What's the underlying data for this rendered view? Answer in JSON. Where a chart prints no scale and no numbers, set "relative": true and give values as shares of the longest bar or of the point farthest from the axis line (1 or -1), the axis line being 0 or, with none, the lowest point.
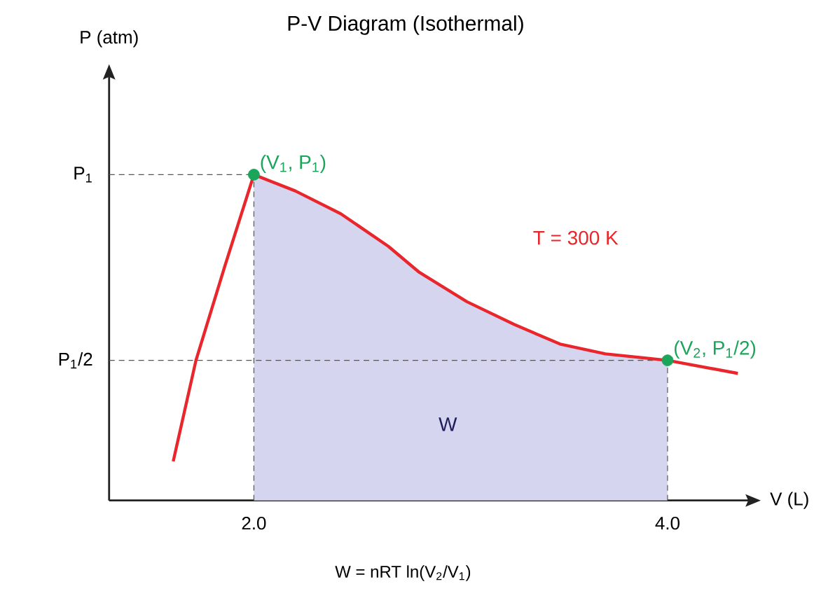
{
  "chart_data": {
    "type": "line",
    "title": "P-V Diagram (Isothermal)",
    "xlabel": "V (L)",
    "relative": true,
    "xlim": [
      1.3,
      4.39
    ],
    "xticks": [
      {
        "value": 2,
        "label": "2.0"
      },
      {
        "value": 4,
        "label": "4.0"
      }
    ],
    "series": [
      {
        "type": "area",
        "color": "#d5d5f0",
        "x": [
          2.0,
          2.2,
          2.42,
          2.65,
          2.8,
          3.03,
          3.26,
          3.48,
          3.7,
          4.0
        ],
        "values": [
          1.0,
          0.95,
          0.88,
          0.78,
          0.7,
          0.61,
          0.54,
          0.48,
          0.45,
          0.43
        ]
      },
      {
        "color": "#e8262b",
        "line_style": "solid",
        "marker": "none",
        "x": [
          1.61,
          1.72,
          1.86,
          2.0,
          2.2,
          2.42,
          2.65,
          2.8,
          3.03,
          3.26,
          3.48,
          3.7,
          4.0,
          4.34
        ],
        "values": [
          0.12,
          0.43,
          0.72,
          1.0,
          0.95,
          0.88,
          0.78,
          0.7,
          0.61,
          0.54,
          0.48,
          0.45,
          0.43,
          0.39
        ]
      },
      {
        "type": "scatter",
        "color": "#1aa55a",
        "marker": "circle",
        "x": [
          2.0,
          4.0
        ],
        "values": [
          1.0,
          0.43
        ]
      }
    ],
    "ref_lines": [
      {
        "axis": "y",
        "value": 1.0,
        "label": "P$_{1}$",
        "line_style": "dashed",
        "color": "#555555"
      },
      {
        "axis": "y",
        "value": 0.43,
        "label": "P$_{1}$/2",
        "line_style": "dashed",
        "color": "#555555"
      },
      {
        "axis": "x",
        "value": 2,
        "line_style": "dashed",
        "color": "#555555"
      },
      {
        "axis": "x",
        "value": 4,
        "line_style": "dashed",
        "color": "#555555"
      }
    ],
    "annotations": [
      {
        "text": "(V$_{1}$, P$_{1}$)",
        "x": 2.0,
        "y": 1.0
      },
      {
        "text": "(V$_{2}$, P$_{1}$/2)",
        "x": 4.0,
        "y": 0.43
      },
      "T = 300 K",
      "W",
      "W = nRT ln(V$_{2}$/V$_{1}$)",
      "P (atm)"
    ]
  }
}
